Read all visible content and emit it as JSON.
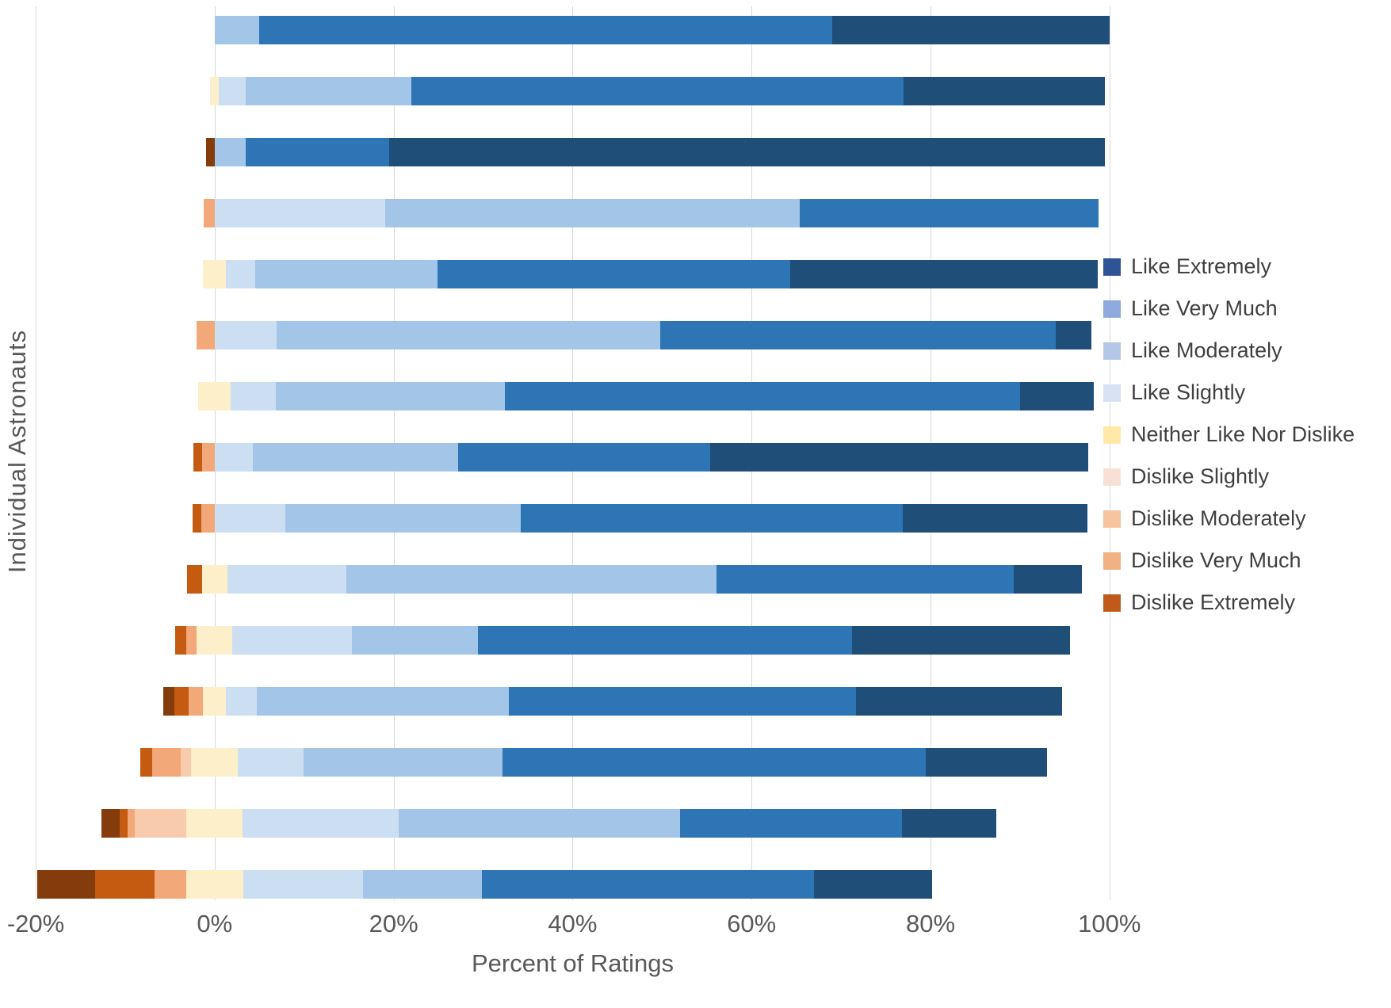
{
  "chart_data": {
    "type": "bar",
    "variant": "horizontal-diverging-stacked",
    "title": "",
    "xlabel": "Percent of Ratings",
    "ylabel": "Individual Astronauts",
    "xlim": [
      -20,
      104
    ],
    "grid": true,
    "gridline_color": "#D9D9D9",
    "axis_text_color": "#595959",
    "x_tick_values": [
      -20,
      0,
      20,
      40,
      60,
      80,
      100
    ],
    "x_ticks": [
      "-20%",
      "0%",
      "20%",
      "40%",
      "60%",
      "80%",
      "100%"
    ],
    "neutral_centered_on_zero": true,
    "series": [
      {
        "key": "dislike_extremely",
        "label": "Dislike Extremely",
        "color": "#843C0C"
      },
      {
        "key": "dislike_very_much",
        "label": "Dislike Very Much",
        "color": "#C55A11"
      },
      {
        "key": "dislike_moderately",
        "label": "Dislike Moderately",
        "color": "#F2A878"
      },
      {
        "key": "dislike_slightly",
        "label": "Dislike Slightly",
        "color": "#F8CBAD"
      },
      {
        "key": "neither",
        "label": "Neither Like Nor Dislike",
        "color": "#FCEFC9"
      },
      {
        "key": "like_slightly",
        "label": "Like Slightly",
        "color": "#CBDEF2"
      },
      {
        "key": "like_moderately",
        "label": "Like Moderately",
        "color": "#A2C5E8"
      },
      {
        "key": "like_very_much",
        "label": "Like Very Much",
        "color": "#2E75B6"
      },
      {
        "key": "like_extremely",
        "label": "Like Extremely",
        "color": "#1F4E79"
      }
    ],
    "legend": {
      "position": "right",
      "entries": [
        {
          "label": "Like Extremely",
          "swatch_color": "#2F5496"
        },
        {
          "label": "Like Very Much",
          "swatch_color": "#8FAADC"
        },
        {
          "label": "Like Moderately",
          "swatch_color": "#B4C7E7"
        },
        {
          "label": "Like Slightly",
          "swatch_color": "#D9E2F3"
        },
        {
          "label": "Neither Like Nor Dislike",
          "swatch_color": "#FFE9A8"
        },
        {
          "label": "Dislike Slightly",
          "swatch_color": "#F8E1D4"
        },
        {
          "label": "Dislike Moderately",
          "swatch_color": "#F6C5A0"
        },
        {
          "label": "Dislike Very Much",
          "swatch_color": "#F2B183"
        },
        {
          "label": "Dislike Extremely",
          "swatch_color": "#C05A1B"
        }
      ]
    },
    "bars": [
      {
        "dislike_extremely": 0,
        "dislike_very_much": 0,
        "dislike_moderately": 0,
        "dislike_slightly": 0,
        "neither": 0,
        "like_slightly": 0,
        "like_moderately": 5,
        "like_very_much": 64,
        "like_extremely": 31
      },
      {
        "dislike_extremely": 0,
        "dislike_very_much": 0,
        "dislike_moderately": 0,
        "dislike_slightly": 0,
        "neither": 1,
        "like_slightly": 3,
        "like_moderately": 18.5,
        "like_very_much": 55,
        "like_extremely": 22.5
      },
      {
        "dislike_extremely": 1,
        "dislike_very_much": 0,
        "dislike_moderately": 0,
        "dislike_slightly": 0,
        "neither": 0,
        "like_slightly": 0,
        "like_moderately": 3.5,
        "like_very_much": 16,
        "like_extremely": 80
      },
      {
        "dislike_extremely": 0,
        "dislike_very_much": 0,
        "dislike_moderately": 1.2,
        "dislike_slightly": 0,
        "neither": 0,
        "like_slightly": 19.1,
        "like_moderately": 46.3,
        "like_very_much": 33.4,
        "like_extremely": 0
      },
      {
        "dislike_extremely": 0,
        "dislike_very_much": 0,
        "dislike_moderately": 0,
        "dislike_slightly": 0,
        "neither": 2.6,
        "like_slightly": 3.2,
        "like_moderately": 20.4,
        "like_very_much": 39.4,
        "like_extremely": 34.4
      },
      {
        "dislike_extremely": 0,
        "dislike_very_much": 0,
        "dislike_moderately": 2,
        "dislike_slightly": 0,
        "neither": 0,
        "like_slightly": 6.9,
        "like_moderately": 42.9,
        "like_very_much": 44.2,
        "like_extremely": 4
      },
      {
        "dislike_extremely": 0,
        "dislike_very_much": 0,
        "dislike_moderately": 0,
        "dislike_slightly": 0,
        "neither": 3.6,
        "like_slightly": 5,
        "like_moderately": 25.6,
        "like_very_much": 57.6,
        "like_extremely": 8.2
      },
      {
        "dislike_extremely": 0,
        "dislike_very_much": 1,
        "dislike_moderately": 1.4,
        "dislike_slightly": 0,
        "neither": 0,
        "like_slightly": 4.3,
        "like_moderately": 22.9,
        "like_very_much": 28.2,
        "like_extremely": 42.2
      },
      {
        "dislike_extremely": 0,
        "dislike_very_much": 1,
        "dislike_moderately": 1.5,
        "dislike_slightly": 0,
        "neither": 0,
        "like_slightly": 7.9,
        "like_moderately": 26.3,
        "like_very_much": 42.7,
        "like_extremely": 20.6
      },
      {
        "dislike_extremely": 0,
        "dislike_very_much": 1.7,
        "dislike_moderately": 0,
        "dislike_slightly": 0,
        "neither": 2.8,
        "like_slightly": 13.3,
        "like_moderately": 41.4,
        "like_very_much": 33.2,
        "like_extremely": 7.6
      },
      {
        "dislike_extremely": 0,
        "dislike_very_much": 1.2,
        "dislike_moderately": 1.2,
        "dislike_slightly": 0,
        "neither": 4,
        "like_slightly": 13.3,
        "like_moderately": 14.1,
        "like_very_much": 41.8,
        "like_extremely": 24.4
      },
      {
        "dislike_extremely": 1.2,
        "dislike_very_much": 1.6,
        "dislike_moderately": 1.6,
        "dislike_slightly": 0,
        "neither": 2.6,
        "like_slightly": 3.4,
        "like_moderately": 28.2,
        "like_very_much": 38.8,
        "like_extremely": 23
      },
      {
        "dislike_extremely": 0,
        "dislike_very_much": 1.3,
        "dislike_moderately": 3.2,
        "dislike_slightly": 1.2,
        "neither": 5.2,
        "like_slightly": 7.3,
        "like_moderately": 22.3,
        "like_very_much": 47.3,
        "like_extremely": 13.5
      },
      {
        "dislike_extremely": 2,
        "dislike_very_much": 0.9,
        "dislike_moderately": 0.8,
        "dislike_slightly": 5.8,
        "neither": 6.3,
        "like_slightly": 17.4,
        "like_moderately": 31.5,
        "like_very_much": 24.8,
        "like_extremely": 10.5
      },
      {
        "dislike_extremely": 6.4,
        "dislike_very_much": 6.7,
        "dislike_moderately": 3.5,
        "dislike_slightly": 0,
        "neither": 6.4,
        "like_slightly": 13.4,
        "like_moderately": 13.3,
        "like_very_much": 37.1,
        "like_extremely": 13.2
      }
    ]
  }
}
